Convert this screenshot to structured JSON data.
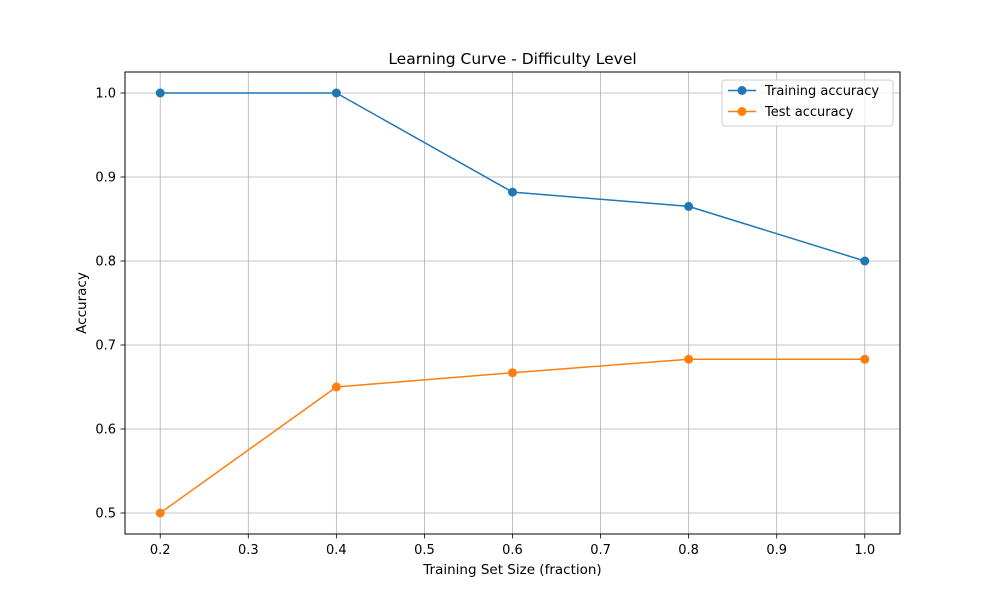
{
  "chart_data": {
    "type": "line",
    "title": "Learning Curve - Difficulty Level",
    "xlabel": "Training Set Size (fraction)",
    "ylabel": "Accuracy",
    "x": [
      0.2,
      0.4,
      0.6,
      0.8,
      1.0
    ],
    "xlim": [
      0.16,
      1.04
    ],
    "ylim": [
      0.475,
      1.025
    ],
    "xticks": [
      {
        "value": 0.2,
        "label": "0.2"
      },
      {
        "value": 0.3,
        "label": "0.3"
      },
      {
        "value": 0.4,
        "label": "0.4"
      },
      {
        "value": 0.5,
        "label": "0.5"
      },
      {
        "value": 0.6,
        "label": "0.6"
      },
      {
        "value": 0.7,
        "label": "0.7"
      },
      {
        "value": 0.8,
        "label": "0.8"
      },
      {
        "value": 0.9,
        "label": "0.9"
      },
      {
        "value": 1.0,
        "label": "1.0"
      }
    ],
    "yticks": [
      {
        "value": 0.5,
        "label": "0.5"
      },
      {
        "value": 0.6,
        "label": "0.6"
      },
      {
        "value": 0.7,
        "label": "0.7"
      },
      {
        "value": 0.8,
        "label": "0.8"
      },
      {
        "value": 0.9,
        "label": "0.9"
      },
      {
        "value": 1.0,
        "label": "1.0"
      }
    ],
    "grid": true,
    "legend_position": "upper right",
    "series": [
      {
        "name": "Training accuracy",
        "color": "#1f77b4",
        "marker": "circle",
        "values": [
          1.0,
          1.0,
          0.882,
          0.865,
          0.8
        ]
      },
      {
        "name": "Test accuracy",
        "color": "#ff7f0e",
        "marker": "circle",
        "values": [
          0.5,
          0.65,
          0.667,
          0.683,
          0.683
        ]
      }
    ]
  }
}
